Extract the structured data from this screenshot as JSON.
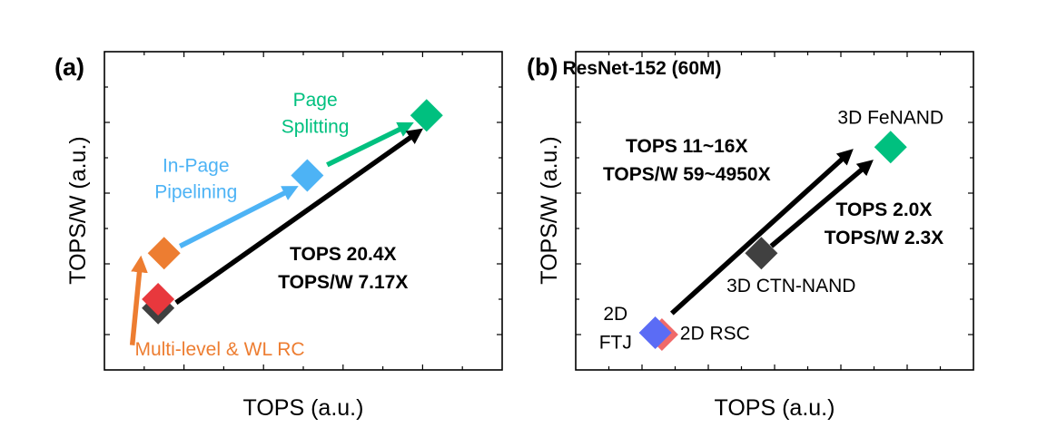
{
  "chart_data": [
    {
      "type": "scatter",
      "panel_label": "(a)",
      "xlabel": "TOPS (a.u.)",
      "ylabel": "TOPS/W (a.u.)",
      "xlim": [
        0,
        10
      ],
      "ylim": [
        0,
        9
      ],
      "x_ticks": 10,
      "y_ticks": 9,
      "grid": false,
      "points": [
        {
          "name": "baseline-shadow",
          "x": 1.35,
          "y": 1.75,
          "color": "#404040"
        },
        {
          "name": "multi-level-wlrc",
          "x": 1.35,
          "y": 2.0,
          "color": "#e8383d"
        },
        {
          "name": "multi-level",
          "x": 1.5,
          "y": 3.3,
          "color": "#ed7d31"
        },
        {
          "name": "in-page-pipelining",
          "x": 5.1,
          "y": 5.5,
          "color": "#4db3f5"
        },
        {
          "name": "page-splitting",
          "x": 8.1,
          "y": 7.2,
          "color": "#00c07f"
        }
      ],
      "arrows": [
        {
          "from": [
            0.7,
            0.7
          ],
          "to": [
            0.9,
            3.0
          ],
          "color": "#ed7d31"
        },
        {
          "from": [
            1.9,
            3.5
          ],
          "to": [
            4.7,
            5.1
          ],
          "color": "#4db3f5"
        },
        {
          "from": [
            5.6,
            5.8
          ],
          "to": [
            7.6,
            6.9
          ],
          "color": "#00c07f"
        },
        {
          "from": [
            1.8,
            1.9
          ],
          "to": [
            7.85,
            6.7
          ],
          "color": "#000000"
        }
      ],
      "annotations": [
        {
          "text": "Page",
          "x": 5.3,
          "y": 7.6,
          "color": "#00c07f",
          "bold": false
        },
        {
          "text": "Splitting",
          "x": 5.3,
          "y": 6.85,
          "color": "#00c07f",
          "bold": false
        },
        {
          "text": "In-Page",
          "x": 2.3,
          "y": 5.75,
          "color": "#4db3f5",
          "bold": false
        },
        {
          "text": "Pipelining",
          "x": 2.3,
          "y": 5.0,
          "color": "#4db3f5",
          "bold": false
        },
        {
          "text": "TOPS 20.4X",
          "x": 6.0,
          "y": 3.25,
          "color": "#000000",
          "bold": true
        },
        {
          "text": "TOPS/W 7.17X",
          "x": 6.0,
          "y": 2.45,
          "color": "#000000",
          "bold": true
        },
        {
          "text": "Multi-level & WL RC",
          "x": 2.9,
          "y": 0.55,
          "color": "#ed7d31",
          "bold": false
        }
      ]
    },
    {
      "type": "scatter",
      "panel_label": "(b)",
      "title": "ResNet-152 (60M)",
      "xlabel": "TOPS (a.u.)",
      "ylabel": "TOPS/W (a.u.)",
      "xlim": [
        0,
        12
      ],
      "ylim": [
        0,
        9
      ],
      "x_ticks": 12,
      "y_ticks": 9,
      "grid": false,
      "points": [
        {
          "name": "2D RSC",
          "x": 2.6,
          "y": 1.0,
          "color": "#f06a6a"
        },
        {
          "name": "2D FTJ",
          "x": 2.4,
          "y": 1.05,
          "color": "#5b6cf5"
        },
        {
          "name": "3D CTN-NAND",
          "x": 5.6,
          "y": 3.3,
          "color": "#404040"
        },
        {
          "name": "3D FeNAND",
          "x": 9.5,
          "y": 6.3,
          "color": "#00c07f"
        }
      ],
      "arrows": [
        {
          "from": [
            2.9,
            1.6
          ],
          "to": [
            8.2,
            6.1
          ],
          "color": "#000000"
        },
        {
          "from": [
            5.9,
            3.5
          ],
          "to": [
            8.8,
            5.8
          ],
          "color": "#000000"
        }
      ],
      "annotations": [
        {
          "text": "ResNet-152 (60M)",
          "x": 2.0,
          "y": 8.5,
          "color": "#000000",
          "bold": true
        },
        {
          "text": "3D FeNAND",
          "x": 9.5,
          "y": 7.1,
          "color": "#000000",
          "bold": false
        },
        {
          "text": "TOPS 11~16X",
          "x": 3.35,
          "y": 6.3,
          "color": "#000000",
          "bold": true
        },
        {
          "text": "TOPS/W 59~4950X",
          "x": 3.35,
          "y": 5.5,
          "color": "#000000",
          "bold": true
        },
        {
          "text": "TOPS 2.0X",
          "x": 9.3,
          "y": 4.5,
          "color": "#000000",
          "bold": true
        },
        {
          "text": "TOPS/W 2.3X",
          "x": 9.3,
          "y": 3.7,
          "color": "#000000",
          "bold": true
        },
        {
          "text": "3D CTN-NAND",
          "x": 6.5,
          "y": 2.35,
          "color": "#000000",
          "bold": false
        },
        {
          "text": "2D",
          "x": 1.2,
          "y": 1.55,
          "color": "#000000",
          "bold": false
        },
        {
          "text": "FTJ",
          "x": 1.2,
          "y": 0.75,
          "color": "#000000",
          "bold": false
        },
        {
          "text": "2D RSC",
          "x": 4.2,
          "y": 1.0,
          "color": "#000000",
          "bold": false
        }
      ]
    }
  ]
}
